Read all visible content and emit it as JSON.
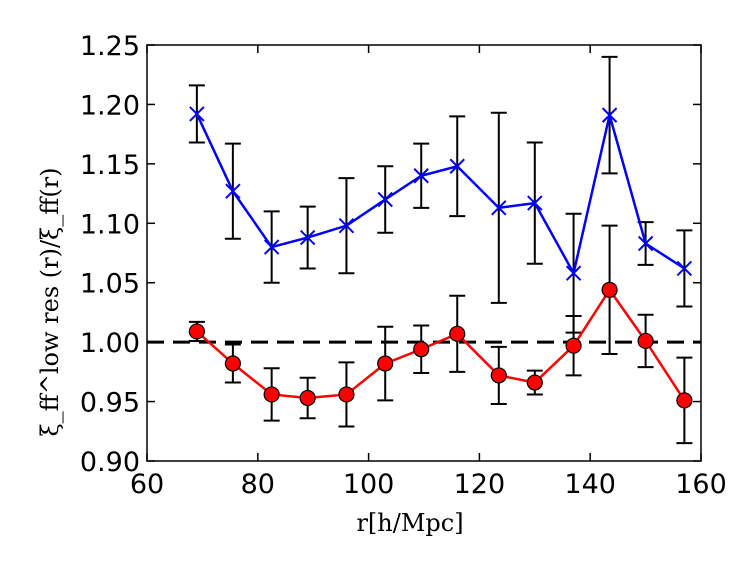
{
  "chart_data": {
    "type": "line",
    "xlabel": "r[h/Mpc]",
    "ylabel": "ξ_ff^low res (r)/ξ_ff(r)",
    "xlim": [
      60,
      160
    ],
    "ylim": [
      0.9,
      1.25
    ],
    "xticks": [
      "60",
      "80",
      "100",
      "120",
      "140",
      "160"
    ],
    "yticks": [
      "0.90",
      "0.95",
      "1.00",
      "1.05",
      "1.10",
      "1.15",
      "1.20",
      "1.25"
    ],
    "reference_line": {
      "y": 1.0,
      "style": "dashed",
      "color": "#000000"
    },
    "series": [
      {
        "color": "#0000ff",
        "marker": "x",
        "x": [
          69,
          75.5,
          82.5,
          89,
          96,
          103,
          109.5,
          116,
          123.5,
          130,
          137,
          143.5,
          150,
          157
        ],
        "y": [
          1.192,
          1.127,
          1.08,
          1.088,
          1.098,
          1.12,
          1.14,
          1.148,
          1.113,
          1.117,
          1.058,
          1.191,
          1.083,
          1.062
        ],
        "yerr": [
          0.024,
          0.04,
          0.03,
          0.026,
          0.04,
          0.028,
          0.027,
          0.042,
          0.08,
          0.051,
          0.05,
          0.049,
          0.018,
          0.032
        ]
      },
      {
        "color": "#ff0000",
        "marker": "o",
        "x": [
          69,
          75.5,
          82.5,
          89,
          96,
          103,
          109.5,
          116,
          123.5,
          130,
          137,
          143.5,
          150,
          157
        ],
        "y": [
          1.009,
          0.982,
          0.956,
          0.953,
          0.956,
          0.982,
          0.994,
          1.007,
          0.972,
          0.966,
          0.997,
          1.044,
          1.001,
          0.951
        ],
        "yerr": [
          0.008,
          0.016,
          0.022,
          0.017,
          0.027,
          0.031,
          0.02,
          0.032,
          0.024,
          0.01,
          0.025,
          0.054,
          0.022,
          0.036
        ]
      }
    ]
  }
}
